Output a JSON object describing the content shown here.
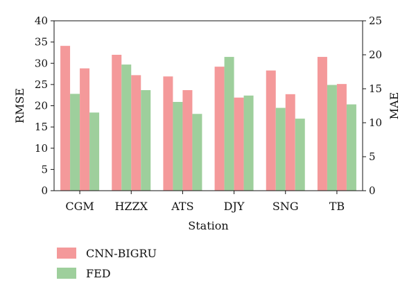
{
  "chart_data": {
    "type": "bar",
    "xlabel": "Station",
    "ylabel_left": "RMSE",
    "ylabel_right": "MAE",
    "ylim_left": [
      0,
      40
    ],
    "ylim_right": [
      0,
      25
    ],
    "yticks_left": [
      0,
      5,
      10,
      15,
      20,
      25,
      30,
      35,
      40
    ],
    "yticks_right": [
      0,
      5,
      10,
      15,
      20,
      25
    ],
    "grid": false,
    "legend_placement": "bottom-left",
    "categories": [
      "CGM",
      "HZZX",
      "ATS",
      "DJY",
      "SNG",
      "TB"
    ],
    "series": [
      {
        "name": "CNN-BIGRU",
        "metric": "RMSE",
        "axis": "left",
        "color": "#f4999a",
        "values": [
          34.1,
          32.0,
          26.9,
          29.2,
          28.3,
          31.5
        ]
      },
      {
        "name": "FED",
        "metric": "RMSE",
        "axis": "left",
        "color": "#9ecf9c",
        "values": [
          22.8,
          29.7,
          20.9,
          31.5,
          19.5,
          24.9
        ]
      },
      {
        "name": "CNN-BIGRU",
        "metric": "MAE",
        "axis": "right",
        "color": "#f4999a",
        "values": [
          18.0,
          17.0,
          14.8,
          13.7,
          14.2,
          15.7
        ]
      },
      {
        "name": "FED",
        "metric": "MAE",
        "axis": "right",
        "color": "#9ecf9c",
        "values": [
          11.5,
          14.8,
          11.3,
          14.0,
          10.6,
          12.7
        ]
      }
    ],
    "legend": [
      {
        "label": "CNN-BIGRU",
        "color": "#f4999a"
      },
      {
        "label": "FED",
        "color": "#9ecf9c"
      }
    ]
  }
}
